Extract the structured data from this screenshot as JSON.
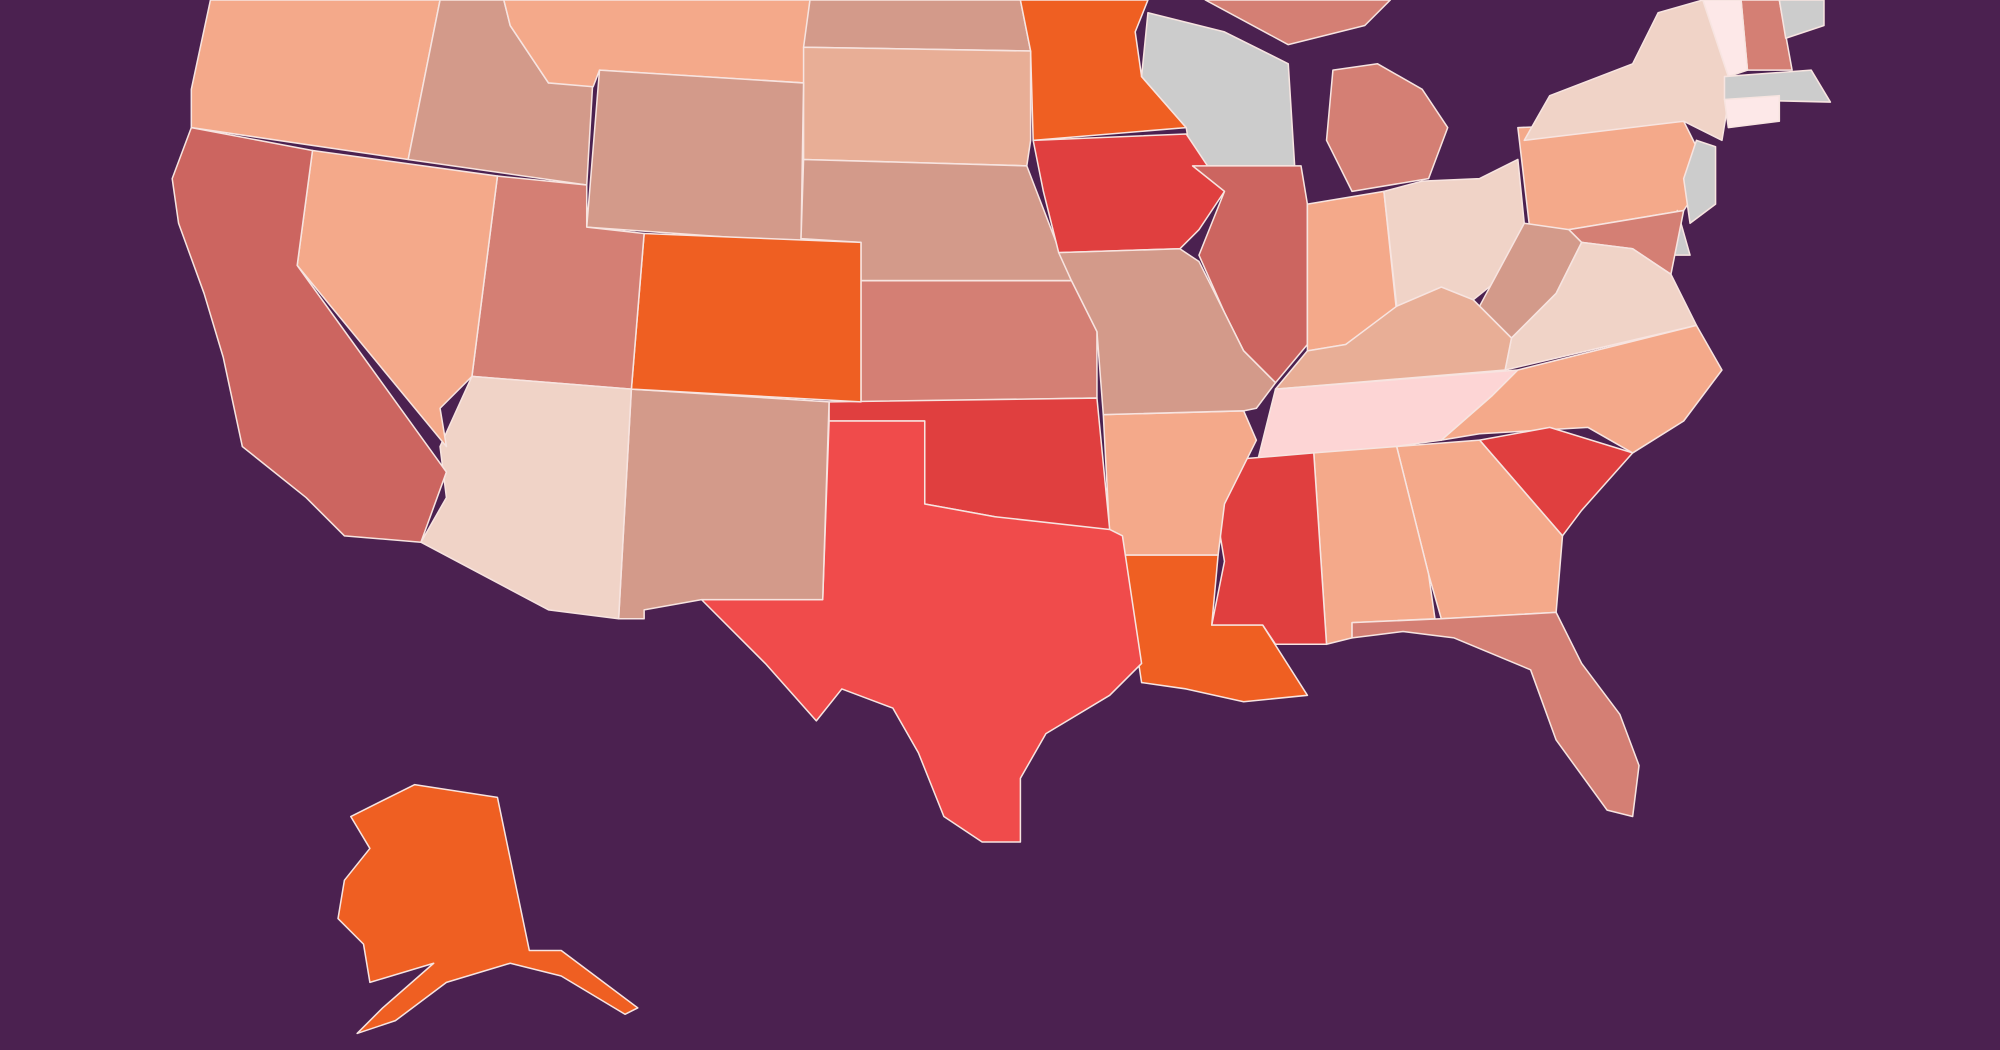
{
  "map": {
    "background": "#4b2150",
    "border": "#f7e4e0",
    "regions": [
      {
        "fill": "#f4a98a"
      },
      {
        "fill": "#d39a8a"
      },
      {
        "fill": "#f4a98a"
      },
      {
        "fill": "#d39a8a"
      },
      {
        "fill": "#ef5f22"
      },
      {
        "fill": "#cccccc"
      },
      {
        "fill": "#d47f74"
      },
      {
        "fill": "#d47f74"
      },
      {
        "fill": "#e8ae96"
      },
      {
        "fill": "#d39a8a"
      },
      {
        "fill": "#d39a8a"
      },
      {
        "fill": "#e03f3f"
      },
      {
        "fill": "#cc6560"
      },
      {
        "fill": "#f4a98a"
      },
      {
        "fill": "#f0d3c7"
      },
      {
        "fill": "#f4a98a"
      },
      {
        "fill": "#f0d3c7"
      },
      {
        "fill": "#d47f74"
      },
      {
        "fill": "#fde8e8"
      },
      {
        "fill": "#cccccc"
      },
      {
        "fill": "#cccccc"
      },
      {
        "fill": "#fde8e8"
      },
      {
        "fill": "#cccccc"
      },
      {
        "fill": "#cccccc"
      },
      {
        "fill": "#d47f74"
      },
      {
        "fill": "#d39a8a"
      },
      {
        "fill": "#f0d3c7"
      },
      {
        "fill": "#e8ae96"
      },
      {
        "fill": "#fdd5d5"
      },
      {
        "fill": "#f4a98a"
      },
      {
        "fill": "#e03f3f"
      },
      {
        "fill": "#f4a98a"
      },
      {
        "fill": "#f4a98a"
      },
      {
        "fill": "#e03f3f"
      },
      {
        "fill": "#d47f74"
      },
      {
        "fill": "#ef5f22"
      },
      {
        "fill": "#f4a98a"
      },
      {
        "fill": "#d39a8a"
      },
      {
        "fill": "#d47f74"
      },
      {
        "fill": "#e03f3f"
      },
      {
        "fill": "#f04b4b"
      },
      {
        "fill": "#d39a8a"
      },
      {
        "fill": "#ef5f22"
      },
      {
        "fill": "#d47f74"
      },
      {
        "fill": "#f0d3c7"
      },
      {
        "fill": "#f4a98a"
      },
      {
        "fill": "#cc6560"
      },
      {
        "fill": "#ef5f22"
      }
    ]
  }
}
